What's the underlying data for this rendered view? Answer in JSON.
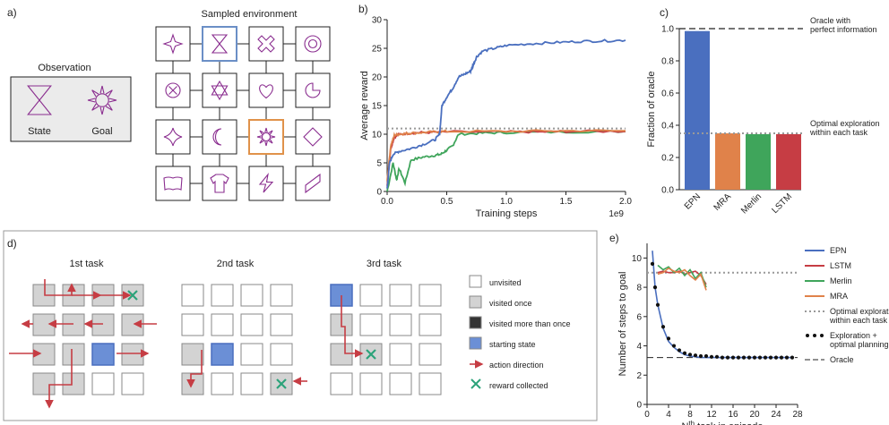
{
  "colors": {
    "EPN": "#4a6fbf",
    "LSTM": "#c63d44",
    "Merlin": "#3fa55b",
    "MRA": "#e0824a",
    "dotted": "#999999",
    "grid_icon": "#8a2d8f",
    "visited": "#d3d3d3",
    "start": "#6b8fd6",
    "arrow": "#c63d44",
    "reward": "#2ca37a"
  },
  "panel_a": {
    "label": "a)",
    "obs_title": "Observation",
    "state_label": "State",
    "goal_label": "Goal",
    "env_title": "Sampled environment",
    "icons": [
      [
        "four-point-star",
        "hourglass",
        "quad-x",
        "circle-ring"
      ],
      [
        "circle-x",
        "six-star",
        "heart",
        "pac-shape"
      ],
      [
        "diamond-cross",
        "crescent",
        "sun",
        "diamond"
      ],
      [
        "open-book",
        "shirt",
        "lightning",
        "parallelogram"
      ]
    ]
  },
  "chart_data": [
    {
      "type": "line",
      "panel": "b)",
      "xlabel": "Training steps",
      "ylabel": "Average reward",
      "x_multiplier": "1e9",
      "xlim": [
        0,
        2.0
      ],
      "ylim": [
        0,
        30
      ],
      "xticks": [
        "0.0",
        "0.5",
        "1.0",
        "1.5",
        "2.0"
      ],
      "yticks": [
        "0",
        "5",
        "10",
        "15",
        "20",
        "25",
        "30"
      ],
      "reference_line": 11.0,
      "series": [
        {
          "key": "EPN",
          "x": [
            0.0,
            0.02,
            0.05,
            0.1,
            0.2,
            0.3,
            0.4,
            0.44,
            0.46,
            0.5,
            0.55,
            0.6,
            0.65,
            0.7,
            0.72,
            0.75,
            0.8,
            0.9,
            1.0,
            1.2,
            1.4,
            1.6,
            1.8,
            2.0
          ],
          "y": [
            0.5,
            5.0,
            6.5,
            7.0,
            7.5,
            8.2,
            9.0,
            10.0,
            15.0,
            16.5,
            18.0,
            20.0,
            20.5,
            21.0,
            22.0,
            23.5,
            24.5,
            25.0,
            25.5,
            25.8,
            26.0,
            26.2,
            26.3,
            26.4
          ]
        },
        {
          "key": "MRA",
          "x": [
            0.0,
            0.03,
            0.06,
            0.1,
            0.15,
            0.2,
            0.3,
            0.4,
            0.5,
            1.0,
            1.5,
            2.0
          ],
          "y": [
            2.0,
            8.0,
            9.8,
            10.0,
            10.1,
            10.2,
            10.3,
            10.4,
            10.5,
            10.5,
            10.6,
            10.6
          ]
        },
        {
          "key": "LSTM",
          "x": [
            0.0,
            0.03,
            0.06,
            0.1,
            0.2,
            0.3,
            0.5,
            1.0,
            1.3,
            1.5,
            2.0
          ],
          "y": [
            1.0,
            7.5,
            9.5,
            10.0,
            10.2,
            10.3,
            10.4,
            10.4,
            10.4,
            10.5,
            10.5
          ]
        },
        {
          "key": "Merlin",
          "x": [
            0.0,
            0.05,
            0.08,
            0.1,
            0.15,
            0.2,
            0.3,
            0.4,
            0.45,
            0.5,
            0.55,
            0.6,
            0.8,
            1.0,
            1.5,
            2.0
          ],
          "y": [
            0.0,
            5.0,
            2.0,
            4.0,
            1.5,
            5.5,
            6.0,
            6.3,
            6.5,
            7.2,
            8.0,
            10.0,
            10.2,
            10.3,
            10.4,
            10.5
          ]
        }
      ]
    },
    {
      "type": "bar",
      "panel": "c)",
      "ylabel": "Fraction of oracle",
      "categories": [
        "EPN",
        "MRA",
        "Merlin",
        "LSTM"
      ],
      "values": [
        0.985,
        0.35,
        0.345,
        0.345
      ],
      "ylim": [
        0.0,
        1.0
      ],
      "yticks": [
        "0.0",
        "0.2",
        "0.4",
        "0.6",
        "0.8",
        "1.0"
      ],
      "oracle_line": 1.0,
      "exploration_line": 0.35,
      "annotations": [
        "Oracle with\nperfect information",
        "Optimal exploration\nwithin each task"
      ]
    },
    {
      "type": "line",
      "panel": "e)",
      "ylabel": "Number of steps to goal",
      "xlabel_prefix": "N",
      "xlabel_sup": "th",
      "xlabel_suffix": " task in episode",
      "xlim": [
        0,
        28
      ],
      "ylim": [
        0,
        11
      ],
      "xticks": [
        "0",
        "4",
        "8",
        "12",
        "16",
        "20",
        "24",
        "28"
      ],
      "yticks": [
        "0",
        "2",
        "4",
        "6",
        "8",
        "10"
      ],
      "exploration_line": 9.0,
      "oracle_line": 3.2,
      "series": [
        {
          "key": "EPN",
          "x": [
            1,
            1.5,
            2,
            3,
            4,
            5,
            6,
            7,
            8,
            10,
            12,
            16,
            20,
            24,
            27
          ],
          "y": [
            10.5,
            8.0,
            6.8,
            5.2,
            4.3,
            3.9,
            3.6,
            3.4,
            3.3,
            3.2,
            3.2,
            3.2,
            3.2,
            3.2,
            3.2
          ]
        },
        {
          "key": "LSTM",
          "x": [
            2,
            3,
            4,
            5,
            6,
            7,
            8,
            9,
            10,
            11
          ],
          "y": [
            9.0,
            9.1,
            9.0,
            9.0,
            9.1,
            8.9,
            9.0,
            9.1,
            8.8,
            8.2
          ]
        },
        {
          "key": "Merlin",
          "x": [
            2,
            3,
            4,
            5,
            6,
            7,
            8,
            9,
            10,
            11
          ],
          "y": [
            9.5,
            9.2,
            9.4,
            9.0,
            9.3,
            8.8,
            9.2,
            8.6,
            9.0,
            8.0
          ]
        },
        {
          "key": "MRA",
          "x": [
            2,
            3,
            4,
            5,
            6,
            7,
            8,
            9,
            10,
            11
          ],
          "y": [
            8.9,
            9.0,
            9.3,
            9.1,
            9.0,
            9.2,
            8.8,
            8.5,
            8.9,
            7.8
          ]
        },
        {
          "key": "dots",
          "x": [
            1,
            1.5,
            2,
            3,
            4,
            5,
            6,
            7,
            8,
            9,
            10,
            11,
            12,
            13,
            14,
            15,
            16,
            17,
            18,
            19,
            20,
            21,
            22,
            23,
            24,
            25,
            26,
            27
          ],
          "y": [
            9.6,
            8.0,
            6.8,
            5.3,
            4.5,
            4.0,
            3.7,
            3.5,
            3.4,
            3.35,
            3.3,
            3.3,
            3.25,
            3.25,
            3.2,
            3.2,
            3.2,
            3.2,
            3.2,
            3.2,
            3.2,
            3.2,
            3.2,
            3.2,
            3.2,
            3.2,
            3.2,
            3.2
          ]
        }
      ],
      "legend": [
        "EPN",
        "LSTM",
        "Merlin",
        "MRA",
        "Optimal exploration\nwithin each task",
        "Exploration +\noptimal planning",
        "Oracle"
      ]
    }
  ],
  "panel_d": {
    "label": "d)",
    "tasks": [
      {
        "title": "1st task",
        "cells": [
          [
            "v",
            "v",
            "v",
            "r"
          ],
          [
            "v",
            "v",
            "v",
            "v"
          ],
          [
            "v",
            "v",
            "s",
            "v"
          ],
          [
            "v",
            "v",
            "u",
            "u"
          ]
        ]
      },
      {
        "title": "2nd task",
        "cells": [
          [
            "u",
            "u",
            "u",
            "u"
          ],
          [
            "u",
            "u",
            "u",
            "u"
          ],
          [
            "v",
            "s",
            "u",
            "u"
          ],
          [
            "v",
            "u",
            "u",
            "r"
          ]
        ]
      },
      {
        "title": "3rd task",
        "cells": [
          [
            "s",
            "u",
            "u",
            "u"
          ],
          [
            "v",
            "u",
            "u",
            "u"
          ],
          [
            "v",
            "r",
            "u",
            "u"
          ],
          [
            "u",
            "u",
            "u",
            "u"
          ]
        ]
      }
    ],
    "legend": [
      "unvisited",
      "visited once",
      "visited more than once",
      "starting state",
      "action direction",
      "reward collected"
    ]
  },
  "panel_e": {
    "label": "e)"
  }
}
